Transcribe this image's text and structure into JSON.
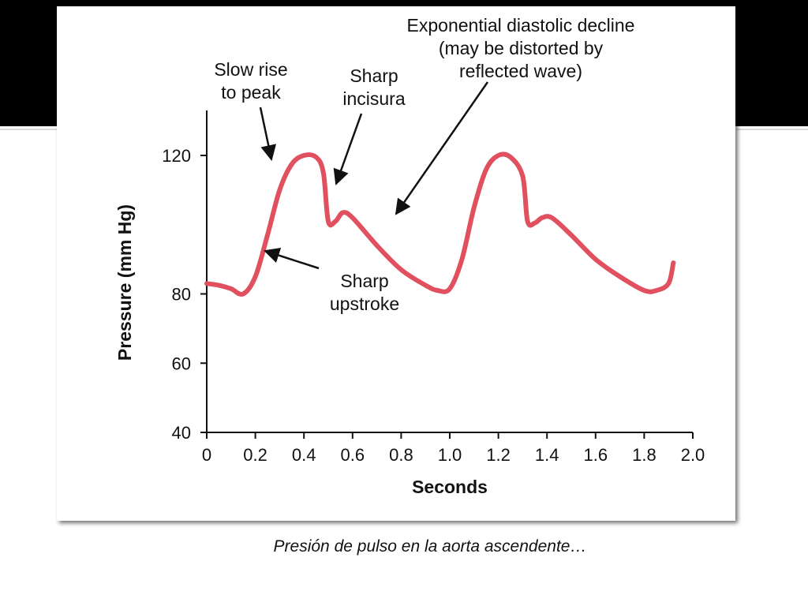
{
  "caption": "Presión de pulso en la aorta ascendente…",
  "colors": {
    "curve": "#e0505e",
    "axis": "#111111",
    "band": "#000000"
  },
  "chart_data": {
    "type": "line",
    "xlabel": "Seconds",
    "ylabel": "Pressure (mm Hg)",
    "xlim": [
      0,
      2.0
    ],
    "ylim": [
      40,
      130
    ],
    "x_ticks": [
      0,
      0.2,
      0.4,
      0.6,
      0.8,
      1.0,
      1.2,
      1.4,
      1.6,
      1.8,
      2.0
    ],
    "x_tick_labels": [
      "0",
      "0.2",
      "0.4",
      "0.6",
      "0.8",
      "1.0",
      "1.2",
      "1.4",
      "1.6",
      "1.8",
      "2.0"
    ],
    "y_ticks": [
      40,
      60,
      80,
      120
    ],
    "y_tick_labels": [
      "40",
      "60",
      "80",
      "120"
    ],
    "grid": false,
    "series": [
      {
        "x": [
          0,
          0.05,
          0.1,
          0.15,
          0.2,
          0.25,
          0.3,
          0.35,
          0.4,
          0.45,
          0.48,
          0.5,
          0.53,
          0.56,
          0.6,
          0.7,
          0.8,
          0.9,
          0.95,
          1.0,
          1.05,
          1.1,
          1.15,
          1.2,
          1.25,
          1.3,
          1.32,
          1.35,
          1.38,
          1.42,
          1.5,
          1.6,
          1.7,
          1.8,
          1.85,
          1.9,
          1.92
        ],
        "y": [
          83,
          82.5,
          81.5,
          80,
          85,
          97,
          110,
          117.5,
          120,
          119.5,
          115,
          101,
          101,
          103.5,
          102,
          94,
          87,
          82.5,
          81,
          81.5,
          90,
          105,
          116,
          120,
          119.5,
          114,
          101,
          100.5,
          102,
          102,
          97,
          90,
          85,
          81,
          81,
          83,
          89
        ]
      }
    ],
    "annotations": [
      {
        "lines": [
          "Slow rise",
          "to peak"
        ],
        "x": 0.28,
        "y": 117
      },
      {
        "lines": [
          "Sharp",
          "incisura"
        ],
        "x": 0.53,
        "y": 103
      },
      {
        "lines": [
          "Exponential diastolic decline",
          "(may be distorted by",
          "reflected wave)"
        ],
        "x": 0.78,
        "y": 93
      },
      {
        "lines": [
          "Sharp",
          "upstroke"
        ],
        "x": 0.23,
        "y": 80
      }
    ]
  }
}
